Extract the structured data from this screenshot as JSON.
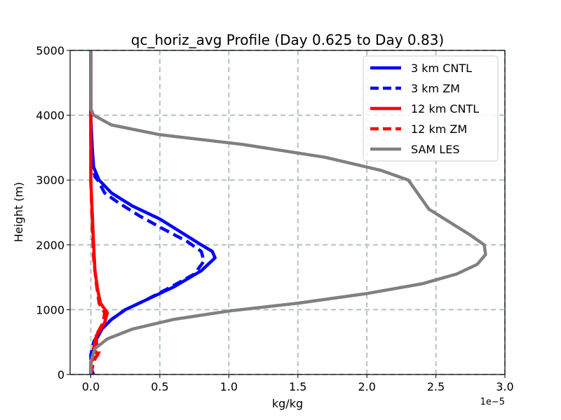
{
  "chart_data": {
    "type": "line",
    "title": "qc_horiz_avg Profile (Day 0.625 to Day 0.83)",
    "xlabel": "kg/kg",
    "ylabel": "Height (m)",
    "x_offset_label": "1e−5",
    "xlim": [
      -0.15,
      3.0
    ],
    "ylim": [
      0,
      5000
    ],
    "x_ticks": [
      0.0,
      0.5,
      1.0,
      1.5,
      2.0,
      2.5,
      3.0
    ],
    "x_tick_labels": [
      "0.0",
      "0.5",
      "1.0",
      "1.5",
      "2.0",
      "2.5",
      "3.0"
    ],
    "y_ticks": [
      0,
      1000,
      2000,
      3000,
      4000,
      5000
    ],
    "y_tick_labels": [
      "0",
      "1000",
      "2000",
      "3000",
      "4000",
      "5000"
    ],
    "grid": true,
    "legend_position": "top-right",
    "series": [
      {
        "name": "3 km CNTL",
        "color": "#0000ff",
        "dash": "solid",
        "points": [
          [
            0.02,
            0
          ],
          [
            0.01,
            50
          ],
          [
            0.0,
            150
          ],
          [
            0.01,
            300
          ],
          [
            0.03,
            500
          ],
          [
            0.08,
            700
          ],
          [
            0.15,
            850
          ],
          [
            0.25,
            1000
          ],
          [
            0.4,
            1150
          ],
          [
            0.6,
            1350
          ],
          [
            0.8,
            1600
          ],
          [
            0.9,
            1800
          ],
          [
            0.88,
            1900
          ],
          [
            0.8,
            2000
          ],
          [
            0.65,
            2200
          ],
          [
            0.5,
            2400
          ],
          [
            0.3,
            2600
          ],
          [
            0.15,
            2800
          ],
          [
            0.06,
            3000
          ],
          [
            0.02,
            3200
          ],
          [
            0.01,
            3500
          ],
          [
            0.0,
            4000
          ],
          [
            0.0,
            5000
          ]
        ]
      },
      {
        "name": "3 km ZM",
        "color": "#0000ff",
        "dash": "dashed",
        "points": [
          [
            0.0,
            0
          ],
          [
            0.0,
            300
          ],
          [
            0.02,
            500
          ],
          [
            0.07,
            700
          ],
          [
            0.15,
            850
          ],
          [
            0.25,
            1000
          ],
          [
            0.4,
            1150
          ],
          [
            0.58,
            1350
          ],
          [
            0.75,
            1550
          ],
          [
            0.82,
            1750
          ],
          [
            0.8,
            1900
          ],
          [
            0.7,
            2050
          ],
          [
            0.52,
            2250
          ],
          [
            0.35,
            2450
          ],
          [
            0.2,
            2650
          ],
          [
            0.1,
            2800
          ],
          [
            0.05,
            3000
          ],
          [
            0.03,
            3050
          ],
          [
            0.01,
            3300
          ],
          [
            0.0,
            3700
          ],
          [
            0.0,
            5000
          ]
        ]
      },
      {
        "name": "12 km CNTL",
        "color": "#ff0000",
        "dash": "solid",
        "points": [
          [
            0.0,
            0
          ],
          [
            0.0,
            200
          ],
          [
            0.05,
            300
          ],
          [
            0.02,
            400
          ],
          [
            0.04,
            600
          ],
          [
            0.1,
            800
          ],
          [
            0.12,
            950
          ],
          [
            0.07,
            1100
          ],
          [
            0.05,
            1300
          ],
          [
            0.03,
            1600
          ],
          [
            0.02,
            2000
          ],
          [
            0.01,
            2500
          ],
          [
            0.0,
            3000
          ],
          [
            0.0,
            3800
          ],
          [
            0.0,
            5000
          ]
        ]
      },
      {
        "name": "12 km ZM",
        "color": "#ff0000",
        "dash": "dashed",
        "points": [
          [
            0.0,
            0
          ],
          [
            0.02,
            200
          ],
          [
            0.06,
            350
          ],
          [
            0.04,
            500
          ],
          [
            0.05,
            650
          ],
          [
            0.09,
            800
          ],
          [
            0.1,
            950
          ],
          [
            0.06,
            1100
          ],
          [
            0.04,
            1400
          ],
          [
            0.02,
            1800
          ],
          [
            0.01,
            2300
          ],
          [
            0.0,
            3000
          ],
          [
            0.0,
            5000
          ]
        ]
      },
      {
        "name": "SAM LES",
        "color": "#808080",
        "dash": "solid",
        "points": [
          [
            0.0,
            0
          ],
          [
            0.0,
            200
          ],
          [
            0.03,
            400
          ],
          [
            0.12,
            550
          ],
          [
            0.3,
            700
          ],
          [
            0.6,
            850
          ],
          [
            1.0,
            980
          ],
          [
            1.5,
            1100
          ],
          [
            2.0,
            1250
          ],
          [
            2.4,
            1400
          ],
          [
            2.65,
            1550
          ],
          [
            2.8,
            1700
          ],
          [
            2.86,
            1850
          ],
          [
            2.85,
            2000
          ],
          [
            2.75,
            2150
          ],
          [
            2.6,
            2350
          ],
          [
            2.45,
            2550
          ],
          [
            2.4,
            2700
          ],
          [
            2.3,
            3000
          ],
          [
            2.1,
            3150
          ],
          [
            1.7,
            3350
          ],
          [
            1.1,
            3550
          ],
          [
            0.5,
            3700
          ],
          [
            0.15,
            3850
          ],
          [
            0.02,
            4000
          ],
          [
            0.0,
            4100
          ],
          [
            0.0,
            5000
          ]
        ]
      }
    ]
  }
}
